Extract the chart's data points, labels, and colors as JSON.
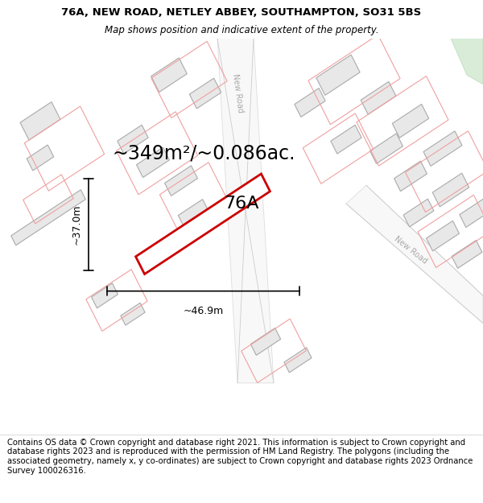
{
  "title_line1": "76A, NEW ROAD, NETLEY ABBEY, SOUTHAMPTON, SO31 5BS",
  "title_line2": "Map shows position and indicative extent of the property.",
  "footer_text": "Contains OS data © Crown copyright and database right 2021. This information is subject to Crown copyright and database rights 2023 and is reproduced with the permission of HM Land Registry. The polygons (including the associated geometry, namely x, y co-ordinates) are subject to Crown copyright and database rights 2023 Ordnance Survey 100026316.",
  "background_color": "#ffffff",
  "building_fill": "#e8e8e8",
  "building_stroke": "#aaaaaa",
  "plot_line_color": "#f0a0a0",
  "road_fill": "#f5f5f5",
  "road_label_color": "#aaaaaa",
  "road_stroke": "#cccccc",
  "highlight_stroke": "#cc0000",
  "area_text": "~349m²/~0.086ac.",
  "label_76a": "76A",
  "dim_width": "~46.9m",
  "dim_height": "~37.0m",
  "title_fontsize": 9.5,
  "subtitle_fontsize": 8.5,
  "area_fontsize": 17,
  "label_fontsize": 16,
  "dim_fontsize": 9,
  "road_fontsize": 7,
  "footer_fontsize": 7.2,
  "green_patch_color": "#d8ecd8"
}
